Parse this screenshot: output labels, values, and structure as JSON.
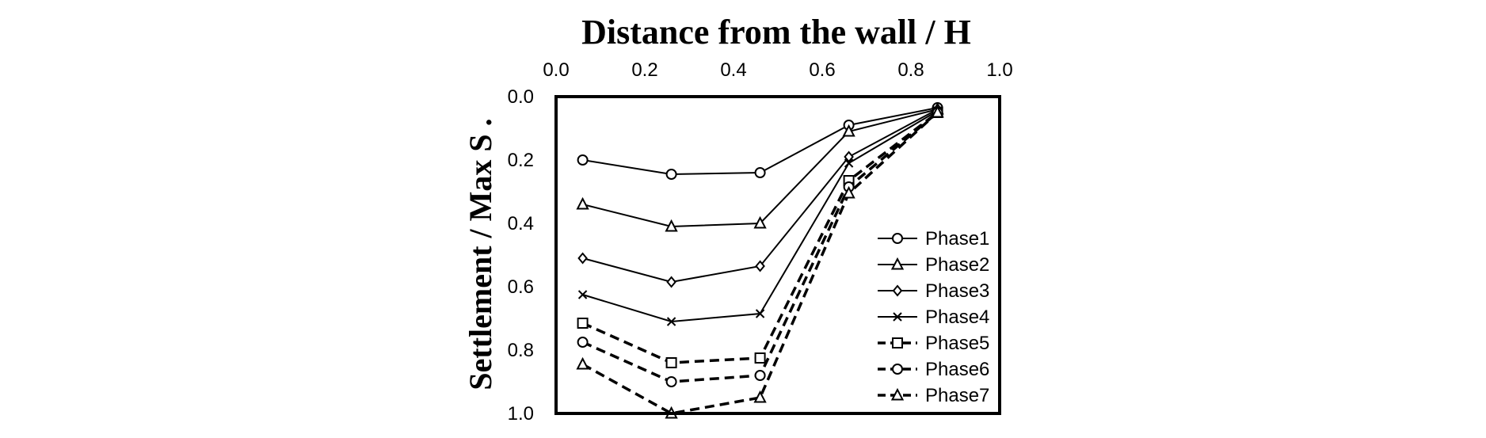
{
  "chart_data": {
    "type": "line",
    "title": "Distance from the wall / H",
    "xlabel": "Distance from the wall / H",
    "ylabel": "Settlement / Max S .",
    "xlim": [
      0.0,
      1.0
    ],
    "ylim": [
      0.0,
      1.0
    ],
    "y_inverted": true,
    "x_axis_position": "top",
    "x_ticks": [
      "0.0",
      "0.2",
      "0.4",
      "0.6",
      "0.8",
      "1.0"
    ],
    "y_ticks": [
      "0.0",
      "0.2",
      "0.4",
      "0.6",
      "0.8",
      "1.0"
    ],
    "grid": false,
    "legend_position": "lower-right",
    "x": [
      0.06,
      0.26,
      0.46,
      0.66,
      0.86
    ],
    "series": [
      {
        "name": "Phase1",
        "marker": "circle",
        "line": "solid",
        "values": [
          0.2,
          0.245,
          0.24,
          0.09,
          0.035
        ]
      },
      {
        "name": "Phase2",
        "marker": "triangle",
        "line": "solid",
        "values": [
          0.34,
          0.41,
          0.4,
          0.11,
          0.04
        ]
      },
      {
        "name": "Phase3",
        "marker": "diamond",
        "line": "solid",
        "values": [
          0.51,
          0.585,
          0.535,
          0.19,
          0.04
        ]
      },
      {
        "name": "Phase4",
        "marker": "x",
        "line": "solid",
        "values": [
          0.625,
          0.71,
          0.685,
          0.21,
          0.045
        ]
      },
      {
        "name": "Phase5",
        "marker": "square",
        "line": "dashed",
        "values": [
          0.715,
          0.84,
          0.825,
          0.265,
          0.05
        ]
      },
      {
        "name": "Phase6",
        "marker": "circle",
        "line": "dashed",
        "values": [
          0.775,
          0.9,
          0.88,
          0.285,
          0.05
        ]
      },
      {
        "name": "Phase7",
        "marker": "triangle",
        "line": "dashed",
        "values": [
          0.845,
          1.0,
          0.95,
          0.305,
          0.05
        ]
      }
    ]
  }
}
